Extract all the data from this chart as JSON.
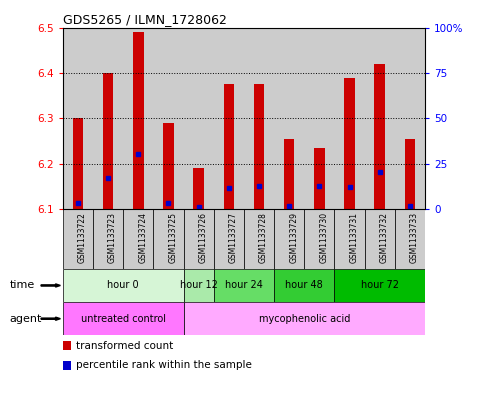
{
  "title": "GDS5265 / ILMN_1728062",
  "samples": [
    "GSM1133722",
    "GSM1133723",
    "GSM1133724",
    "GSM1133725",
    "GSM1133726",
    "GSM1133727",
    "GSM1133728",
    "GSM1133729",
    "GSM1133730",
    "GSM1133731",
    "GSM1133732",
    "GSM1133733"
  ],
  "bar_values": [
    6.3,
    6.4,
    6.49,
    6.29,
    6.19,
    6.375,
    6.375,
    6.255,
    6.235,
    6.39,
    6.42,
    6.255
  ],
  "blue_values": [
    6.113,
    6.168,
    6.222,
    6.113,
    6.105,
    6.148,
    6.152,
    6.108,
    6.152,
    6.15,
    6.183,
    6.108
  ],
  "bar_bottom": 6.1,
  "ylim_min": 6.1,
  "ylim_max": 6.5,
  "y_ticks": [
    6.1,
    6.2,
    6.3,
    6.4,
    6.5
  ],
  "y2_ticks": [
    0,
    25,
    50,
    75,
    100
  ],
  "y2_tick_positions": [
    6.1,
    6.2,
    6.3,
    6.4,
    6.5
  ],
  "bar_color": "#cc0000",
  "blue_color": "#0000cc",
  "time_groups": [
    {
      "label": "hour 0",
      "start": 0,
      "end": 4,
      "color": "#d6f5d6"
    },
    {
      "label": "hour 12",
      "start": 4,
      "end": 5,
      "color": "#aaeaaa"
    },
    {
      "label": "hour 24",
      "start": 5,
      "end": 7,
      "color": "#66dd66"
    },
    {
      "label": "hour 48",
      "start": 7,
      "end": 9,
      "color": "#33cc33"
    },
    {
      "label": "hour 72",
      "start": 9,
      "end": 12,
      "color": "#00bb00"
    }
  ],
  "agent_groups": [
    {
      "label": "untreated control",
      "start": 0,
      "end": 4,
      "color": "#ff77ff"
    },
    {
      "label": "mycophenolic acid",
      "start": 4,
      "end": 12,
      "color": "#ffaaff"
    }
  ],
  "time_row_label": "time",
  "agent_row_label": "agent",
  "legend_bar_label": "transformed count",
  "legend_blue_label": "percentile rank within the sample",
  "col_bg_color": "#cccccc"
}
